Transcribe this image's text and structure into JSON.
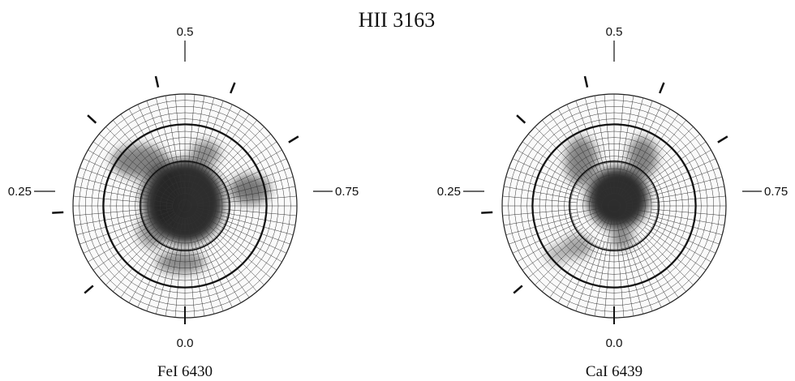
{
  "title": "HII 3163",
  "panels": [
    {
      "label": "FeI 6430",
      "phases": {
        "top": "0.5",
        "left": "0.25",
        "right": "0.75",
        "bottom": "0.0"
      }
    },
    {
      "label": "CaI 6439",
      "phases": {
        "top": "0.5",
        "left": "0.25",
        "right": "0.75",
        "bottom": "0.0"
      }
    }
  ]
}
